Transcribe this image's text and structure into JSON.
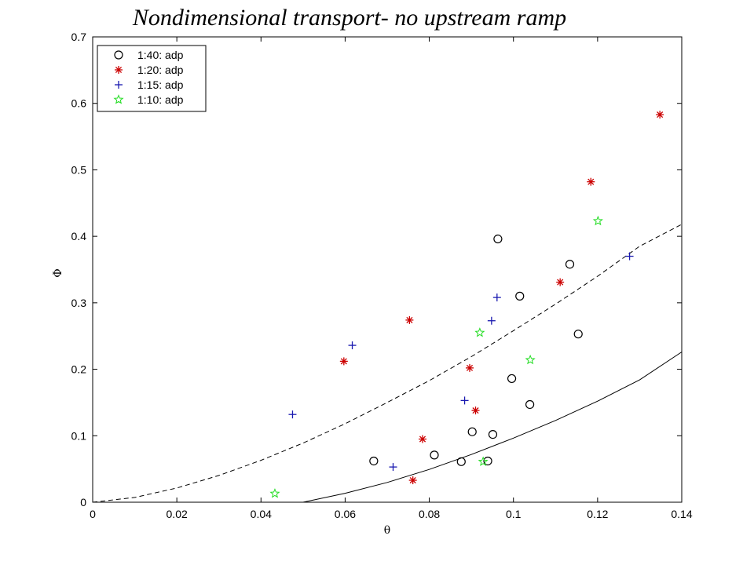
{
  "chart_data": {
    "type": "scatter",
    "title": "Nondimensional transport- no upstream ramp",
    "xlabel": "θ",
    "ylabel": "Φ",
    "xlim": [
      0,
      0.14
    ],
    "ylim": [
      0,
      0.7
    ],
    "xticks": [
      0,
      0.02,
      0.04,
      0.06,
      0.08,
      0.1,
      0.12,
      0.14
    ],
    "xtick_labels": [
      "0",
      "0.02",
      "0.04",
      "0.06",
      "0.08",
      "0.1",
      "0.12",
      "0.14"
    ],
    "yticks": [
      0,
      0.1,
      0.2,
      0.3,
      0.4,
      0.5,
      0.6,
      0.7
    ],
    "ytick_labels": [
      "0",
      "0.1",
      "0.2",
      "0.3",
      "0.4",
      "0.5",
      "0.6",
      "0.7"
    ],
    "grid": false,
    "legend_position": "top-left",
    "series": [
      {
        "name": "1:40: adp",
        "marker": "circle",
        "color": "#000000",
        "points": [
          [
            0.0668,
            0.062
          ],
          [
            0.0812,
            0.071
          ],
          [
            0.0876,
            0.061
          ],
          [
            0.0902,
            0.106
          ],
          [
            0.0939,
            0.062
          ],
          [
            0.0951,
            0.102
          ],
          [
            0.0963,
            0.396
          ],
          [
            0.0996,
            0.186
          ],
          [
            0.1015,
            0.31
          ],
          [
            0.1039,
            0.147
          ],
          [
            0.1134,
            0.358
          ],
          [
            0.1154,
            0.253
          ]
        ]
      },
      {
        "name": "1:20: adp",
        "marker": "asterisk",
        "color": "#cc0000",
        "points": [
          [
            0.0597,
            0.212
          ],
          [
            0.0753,
            0.274
          ],
          [
            0.0761,
            0.033
          ],
          [
            0.0784,
            0.095
          ],
          [
            0.0896,
            0.202
          ],
          [
            0.091,
            0.138
          ],
          [
            0.1111,
            0.331
          ],
          [
            0.1184,
            0.482
          ],
          [
            0.1348,
            0.583
          ]
        ]
      },
      {
        "name": "1:15: adp",
        "marker": "plus",
        "color": "#1a1ab0",
        "points": [
          [
            0.0475,
            0.132
          ],
          [
            0.0617,
            0.236
          ],
          [
            0.0714,
            0.053
          ],
          [
            0.0884,
            0.153
          ],
          [
            0.0948,
            0.273
          ],
          [
            0.0961,
            0.308
          ],
          [
            0.1276,
            0.37
          ]
        ]
      },
      {
        "name": "1:10: adp",
        "marker": "star",
        "color": "#22dd22",
        "points": [
          [
            0.0433,
            0.013
          ],
          [
            0.092,
            0.255
          ],
          [
            0.0928,
            0.061
          ],
          [
            0.104,
            0.214
          ],
          [
            0.1201,
            0.423
          ]
        ]
      }
    ],
    "curves": [
      {
        "style": "dashed",
        "color": "#000000",
        "points": [
          [
            0,
            0
          ],
          [
            0.01,
            0.0072
          ],
          [
            0.02,
            0.0214
          ],
          [
            0.03,
            0.0402
          ],
          [
            0.04,
            0.063
          ],
          [
            0.05,
            0.089
          ],
          [
            0.06,
            0.118
          ],
          [
            0.07,
            0.15
          ],
          [
            0.08,
            0.183
          ],
          [
            0.09,
            0.219
          ],
          [
            0.1,
            0.258
          ],
          [
            0.11,
            0.298
          ],
          [
            0.12,
            0.34
          ],
          [
            0.13,
            0.385
          ],
          [
            0.14,
            0.418
          ]
        ]
      },
      {
        "style": "solid",
        "color": "#000000",
        "points": [
          [
            0.05,
            0.0
          ],
          [
            0.06,
            0.0134
          ],
          [
            0.07,
            0.0297
          ],
          [
            0.08,
            0.0494
          ],
          [
            0.09,
            0.0718
          ],
          [
            0.1,
            0.0965
          ],
          [
            0.11,
            0.123
          ],
          [
            0.12,
            0.152
          ],
          [
            0.13,
            0.184
          ],
          [
            0.14,
            0.226
          ]
        ]
      }
    ]
  }
}
